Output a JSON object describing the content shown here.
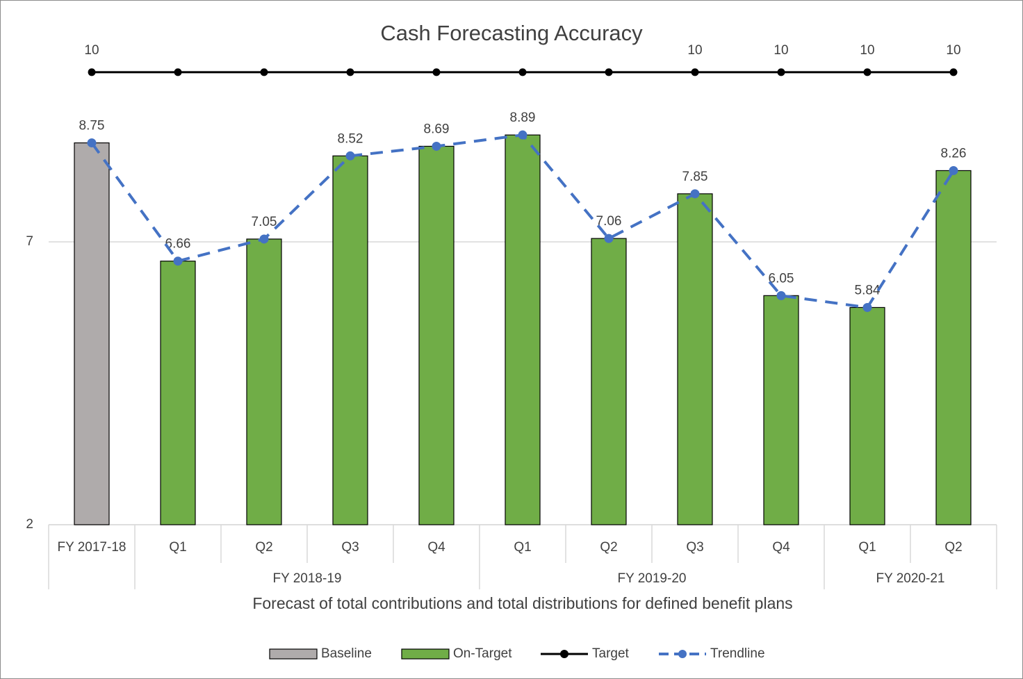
{
  "chart_data": {
    "type": "bar",
    "title": "Cash Forecasting Accuracy",
    "x_label": "Forecast of total contributions and total distributions for defined benefit plans",
    "categories": [
      "FY 2017-18",
      "Q1",
      "Q2",
      "Q3",
      "Q4",
      "Q1",
      "Q2",
      "Q3",
      "Q4",
      "Q1",
      "Q2"
    ],
    "groups": [
      {
        "name": null,
        "size": 1
      },
      {
        "name": "FY 2018-19",
        "size": 4
      },
      {
        "name": "FY 2019-20",
        "size": 4
      },
      {
        "name": "FY 2020-21",
        "size": 2
      }
    ],
    "ylim": [
      2,
      10.6
    ],
    "yticks": [
      2,
      7
    ],
    "grid": true,
    "legend": "bottom",
    "series": [
      {
        "name": "Baseline",
        "type": "bar",
        "color": "#afabab",
        "values": [
          8.75,
          null,
          null,
          null,
          null,
          null,
          null,
          null,
          null,
          null,
          null
        ]
      },
      {
        "name": "On-Target",
        "type": "bar",
        "color": "#70ad47",
        "values": [
          null,
          6.66,
          7.05,
          8.52,
          8.69,
          8.89,
          7.06,
          7.85,
          6.05,
          5.84,
          8.26
        ]
      },
      {
        "name": "Target",
        "type": "line",
        "color": "#000000",
        "values": [
          10,
          10,
          10,
          10,
          10,
          10,
          10,
          10,
          10,
          10,
          10
        ],
        "value_labels": [
          "10",
          null,
          null,
          null,
          null,
          null,
          null,
          "10",
          "10",
          "10",
          "10"
        ]
      },
      {
        "name": "Trendline",
        "type": "line",
        "dashed": true,
        "color": "#4472c4",
        "values": [
          8.75,
          6.66,
          7.05,
          8.52,
          8.69,
          8.89,
          7.06,
          7.85,
          6.05,
          5.84,
          8.26
        ]
      }
    ]
  }
}
